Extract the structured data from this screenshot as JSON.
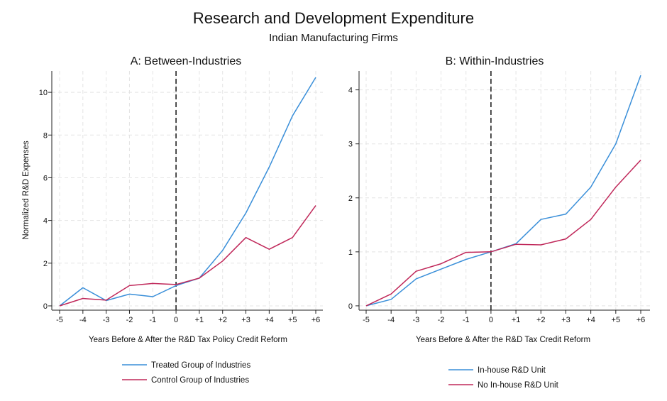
{
  "figure": {
    "title": "Research and Development Expenditure",
    "subtitle": "Indian Manufacturing Firms"
  },
  "colors": {
    "series1": "#3a8fd9",
    "series2": "#c0285a"
  },
  "chart_data": [
    {
      "type": "line",
      "panel_title": "A: Between-Industries",
      "categories": [
        "-5",
        "-4",
        "-3",
        "-2",
        "-1",
        "0",
        "+1",
        "+2",
        "+3",
        "+4",
        "+5",
        "+6"
      ],
      "series": [
        {
          "name": "Treated Group of Industries",
          "values": [
            0,
            0.85,
            0.25,
            0.55,
            0.43,
            0.95,
            1.3,
            2.6,
            4.35,
            6.5,
            8.9,
            10.7
          ]
        },
        {
          "name": "Control Group of Industries",
          "values": [
            0,
            0.35,
            0.27,
            0.95,
            1.05,
            1.0,
            1.3,
            2.1,
            3.2,
            2.65,
            3.2,
            4.7
          ]
        }
      ],
      "xlabel": "Years Before & After the R&D Tax Policy Credit Reform",
      "ylabel": "Normalized R&D Expenses",
      "yticks": [
        0,
        2,
        4,
        6,
        8,
        10
      ],
      "ylim": [
        -0.2,
        11.0
      ],
      "reference_line_x": "0",
      "grid": true,
      "legend_position": "bottom"
    },
    {
      "type": "line",
      "panel_title": "B: Within-Industries",
      "categories": [
        "-5",
        "-4",
        "-3",
        "-2",
        "-1",
        "0",
        "+1",
        "+2",
        "+3",
        "+4",
        "+5",
        "+6"
      ],
      "series": [
        {
          "name": "In-house R&D Unit",
          "values": [
            0,
            0.12,
            0.5,
            0.68,
            0.86,
            1.0,
            1.15,
            1.6,
            1.7,
            2.2,
            3.0,
            4.27
          ]
        },
        {
          "name": "No In-house R&D Unit",
          "values": [
            0,
            0.22,
            0.64,
            0.78,
            0.99,
            1.0,
            1.14,
            1.13,
            1.24,
            1.6,
            2.2,
            2.7
          ]
        }
      ],
      "xlabel": "Years Before & After the R&D Tax Credit Reform",
      "ylabel": "",
      "yticks": [
        0,
        1,
        2,
        3,
        4
      ],
      "ylim": [
        -0.08,
        4.35
      ],
      "reference_line_x": "0",
      "grid": true,
      "legend_position": "bottom"
    }
  ]
}
